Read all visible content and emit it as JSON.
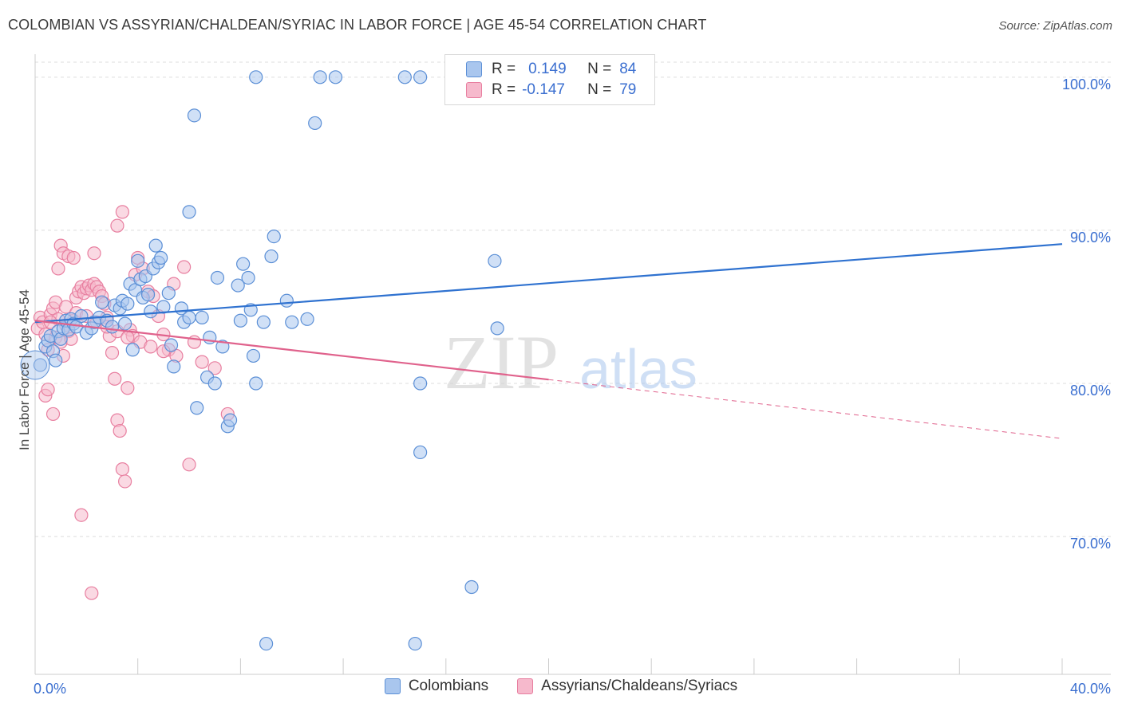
{
  "title": "COLOMBIAN VS ASSYRIAN/CHALDEAN/SYRIAC IN LABOR FORCE | AGE 45-54 CORRELATION CHART",
  "source": "Source: ZipAtlas.com",
  "watermark": {
    "zip": "ZIP",
    "atlas": "atlas"
  },
  "legend": {
    "series1": {
      "r_label": "R =",
      "r_value": "0.149",
      "n_label": "N =",
      "n_value": "84"
    },
    "series2": {
      "r_label": "R =",
      "r_value": "-0.147",
      "n_label": "N =",
      "n_value": "79"
    }
  },
  "colors": {
    "blue_fill": "#a9c6ee",
    "blue_stroke": "#5b8fd6",
    "blue_line": "#2f72d0",
    "pink_fill": "#f6b9cc",
    "pink_stroke": "#e87fa0",
    "pink_line": "#e0628c",
    "axis_text": "#3b6fd0",
    "grid": "#dddddd"
  },
  "chart_data": {
    "type": "scatter",
    "xlabel": "",
    "ylabel": "In Labor Force | Age 45-54",
    "xlim": [
      0,
      40
    ],
    "ylim": [
      61,
      101.5
    ],
    "x_tick_labels": [
      {
        "value": 0,
        "label": "0.0%"
      },
      {
        "value": 40,
        "label": "40.0%"
      }
    ],
    "y_tick_labels": [
      {
        "value": 70,
        "label": "70.0%"
      },
      {
        "value": 80,
        "label": "80.0%"
      },
      {
        "value": 90,
        "label": "90.0%"
      },
      {
        "value": 100,
        "label": "100.0%"
      }
    ],
    "series": [
      {
        "name": "Colombians",
        "points": [
          [
            0.2,
            81.2
          ],
          [
            0.4,
            82.4
          ],
          [
            0.5,
            82.8
          ],
          [
            0.6,
            83.1
          ],
          [
            0.7,
            82.1
          ],
          [
            0.8,
            81.5
          ],
          [
            0.9,
            83.4
          ],
          [
            1.0,
            82.9
          ],
          [
            1.1,
            83.6
          ],
          [
            1.2,
            84.1
          ],
          [
            1.3,
            83.5
          ],
          [
            1.4,
            84.2
          ],
          [
            1.5,
            83.9
          ],
          [
            1.6,
            83.7
          ],
          [
            1.8,
            84.4
          ],
          [
            2.0,
            83.3
          ],
          [
            2.2,
            83.6
          ],
          [
            2.3,
            84.0
          ],
          [
            2.5,
            84.3
          ],
          [
            2.6,
            85.3
          ],
          [
            2.8,
            84.1
          ],
          [
            3.0,
            83.7
          ],
          [
            3.1,
            85.1
          ],
          [
            3.3,
            84.9
          ],
          [
            3.4,
            85.4
          ],
          [
            3.5,
            83.9
          ],
          [
            3.6,
            85.2
          ],
          [
            3.7,
            86.5
          ],
          [
            3.8,
            82.2
          ],
          [
            3.9,
            86.1
          ],
          [
            4.0,
            88.0
          ],
          [
            4.1,
            86.8
          ],
          [
            4.2,
            85.6
          ],
          [
            4.3,
            87.0
          ],
          [
            4.4,
            85.8
          ],
          [
            4.5,
            84.7
          ],
          [
            4.6,
            87.5
          ],
          [
            4.7,
            89.0
          ],
          [
            4.8,
            87.9
          ],
          [
            4.9,
            88.2
          ],
          [
            5.0,
            85.0
          ],
          [
            5.2,
            85.9
          ],
          [
            5.3,
            82.5
          ],
          [
            5.4,
            81.1
          ],
          [
            5.7,
            84.9
          ],
          [
            5.8,
            84.0
          ],
          [
            6.0,
            84.3
          ],
          [
            6.0,
            91.2
          ],
          [
            6.2,
            97.5
          ],
          [
            6.3,
            78.4
          ],
          [
            6.5,
            84.3
          ],
          [
            6.7,
            80.4
          ],
          [
            6.8,
            83.0
          ],
          [
            7.0,
            80.0
          ],
          [
            7.1,
            86.9
          ],
          [
            7.3,
            82.4
          ],
          [
            7.5,
            77.2
          ],
          [
            7.6,
            77.6
          ],
          [
            7.9,
            86.4
          ],
          [
            8.0,
            84.1
          ],
          [
            8.1,
            87.8
          ],
          [
            8.3,
            86.9
          ],
          [
            8.4,
            84.8
          ],
          [
            8.5,
            81.8
          ],
          [
            8.6,
            80.0
          ],
          [
            8.9,
            84.0
          ],
          [
            9.2,
            88.3
          ],
          [
            9.3,
            89.6
          ],
          [
            9.8,
            85.4
          ],
          [
            10.0,
            84.0
          ],
          [
            10.6,
            84.2
          ],
          [
            10.9,
            97.0
          ],
          [
            11.1,
            100.0
          ],
          [
            8.6,
            100.0
          ],
          [
            11.7,
            100.0
          ],
          [
            14.4,
            100.0
          ],
          [
            15.0,
            100.0
          ],
          [
            17.9,
            88.0
          ],
          [
            18.0,
            83.6
          ],
          [
            15.0,
            75.5
          ],
          [
            15.0,
            80.0
          ],
          [
            17.0,
            66.7
          ],
          [
            14.8,
            63.0
          ],
          [
            9.0,
            63.0
          ]
        ]
      },
      {
        "name": "Assyrians/Chaldeans/Syriacs",
        "points": [
          [
            0.1,
            83.6
          ],
          [
            0.2,
            84.3
          ],
          [
            0.3,
            84.0
          ],
          [
            0.4,
            83.2
          ],
          [
            0.5,
            82.2
          ],
          [
            0.6,
            84.5
          ],
          [
            0.7,
            84.9
          ],
          [
            0.8,
            83.0
          ],
          [
            0.9,
            84.2
          ],
          [
            1.0,
            82.7
          ],
          [
            1.1,
            81.8
          ],
          [
            1.2,
            83.8
          ],
          [
            1.3,
            83.4
          ],
          [
            1.4,
            82.9
          ],
          [
            1.5,
            84.1
          ],
          [
            1.6,
            85.6
          ],
          [
            1.7,
            86.0
          ],
          [
            1.8,
            86.3
          ],
          [
            1.9,
            85.9
          ],
          [
            2.0,
            86.2
          ],
          [
            2.1,
            86.4
          ],
          [
            2.2,
            86.1
          ],
          [
            2.3,
            86.5
          ],
          [
            2.4,
            86.3
          ],
          [
            2.5,
            86.0
          ],
          [
            2.6,
            85.7
          ],
          [
            2.7,
            85.2
          ],
          [
            2.8,
            84.3
          ],
          [
            2.9,
            83.1
          ],
          [
            3.0,
            82.0
          ],
          [
            3.1,
            80.3
          ],
          [
            3.2,
            77.6
          ],
          [
            3.3,
            76.9
          ],
          [
            3.4,
            74.4
          ],
          [
            3.5,
            73.6
          ],
          [
            3.6,
            79.7
          ],
          [
            3.7,
            83.5
          ],
          [
            3.8,
            83.1
          ],
          [
            3.9,
            87.1
          ],
          [
            4.0,
            88.2
          ],
          [
            4.2,
            87.5
          ],
          [
            4.4,
            86.0
          ],
          [
            4.6,
            85.7
          ],
          [
            4.8,
            84.4
          ],
          [
            5.0,
            83.2
          ],
          [
            5.2,
            82.2
          ],
          [
            5.4,
            86.5
          ],
          [
            5.8,
            87.6
          ],
          [
            6.0,
            74.7
          ],
          [
            6.2,
            82.7
          ],
          [
            0.4,
            79.2
          ],
          [
            0.5,
            79.6
          ],
          [
            0.7,
            78.0
          ],
          [
            0.9,
            87.5
          ],
          [
            1.0,
            89.0
          ],
          [
            1.1,
            88.5
          ],
          [
            1.3,
            88.3
          ],
          [
            1.5,
            88.2
          ],
          [
            1.8,
            71.4
          ],
          [
            2.2,
            66.3
          ],
          [
            2.3,
            88.5
          ],
          [
            3.2,
            90.3
          ],
          [
            3.4,
            91.2
          ],
          [
            0.6,
            84.0
          ],
          [
            0.8,
            85.3
          ],
          [
            1.2,
            85.0
          ],
          [
            1.6,
            84.6
          ],
          [
            2.0,
            84.4
          ],
          [
            2.4,
            84.0
          ],
          [
            2.8,
            83.7
          ],
          [
            3.2,
            83.4
          ],
          [
            3.6,
            83.0
          ],
          [
            4.1,
            82.7
          ],
          [
            4.5,
            82.4
          ],
          [
            5.0,
            82.1
          ],
          [
            5.5,
            81.8
          ],
          [
            6.5,
            81.4
          ],
          [
            7.0,
            81.0
          ],
          [
            7.5,
            78.0
          ]
        ]
      }
    ],
    "trend_lines": [
      {
        "series": "Colombians",
        "x": [
          0,
          40
        ],
        "y": [
          84.0,
          89.1
        ]
      },
      {
        "series": "Assyrians/Chaldeans/Syriacs",
        "x": [
          0,
          40
        ],
        "y": [
          84.1,
          76.4
        ],
        "solid_until_x": 20
      }
    ],
    "grid": true,
    "legend_position": "top-center"
  },
  "bottom_legend": [
    "Colombians",
    "Assyrians/Chaldeans/Syriacs"
  ]
}
